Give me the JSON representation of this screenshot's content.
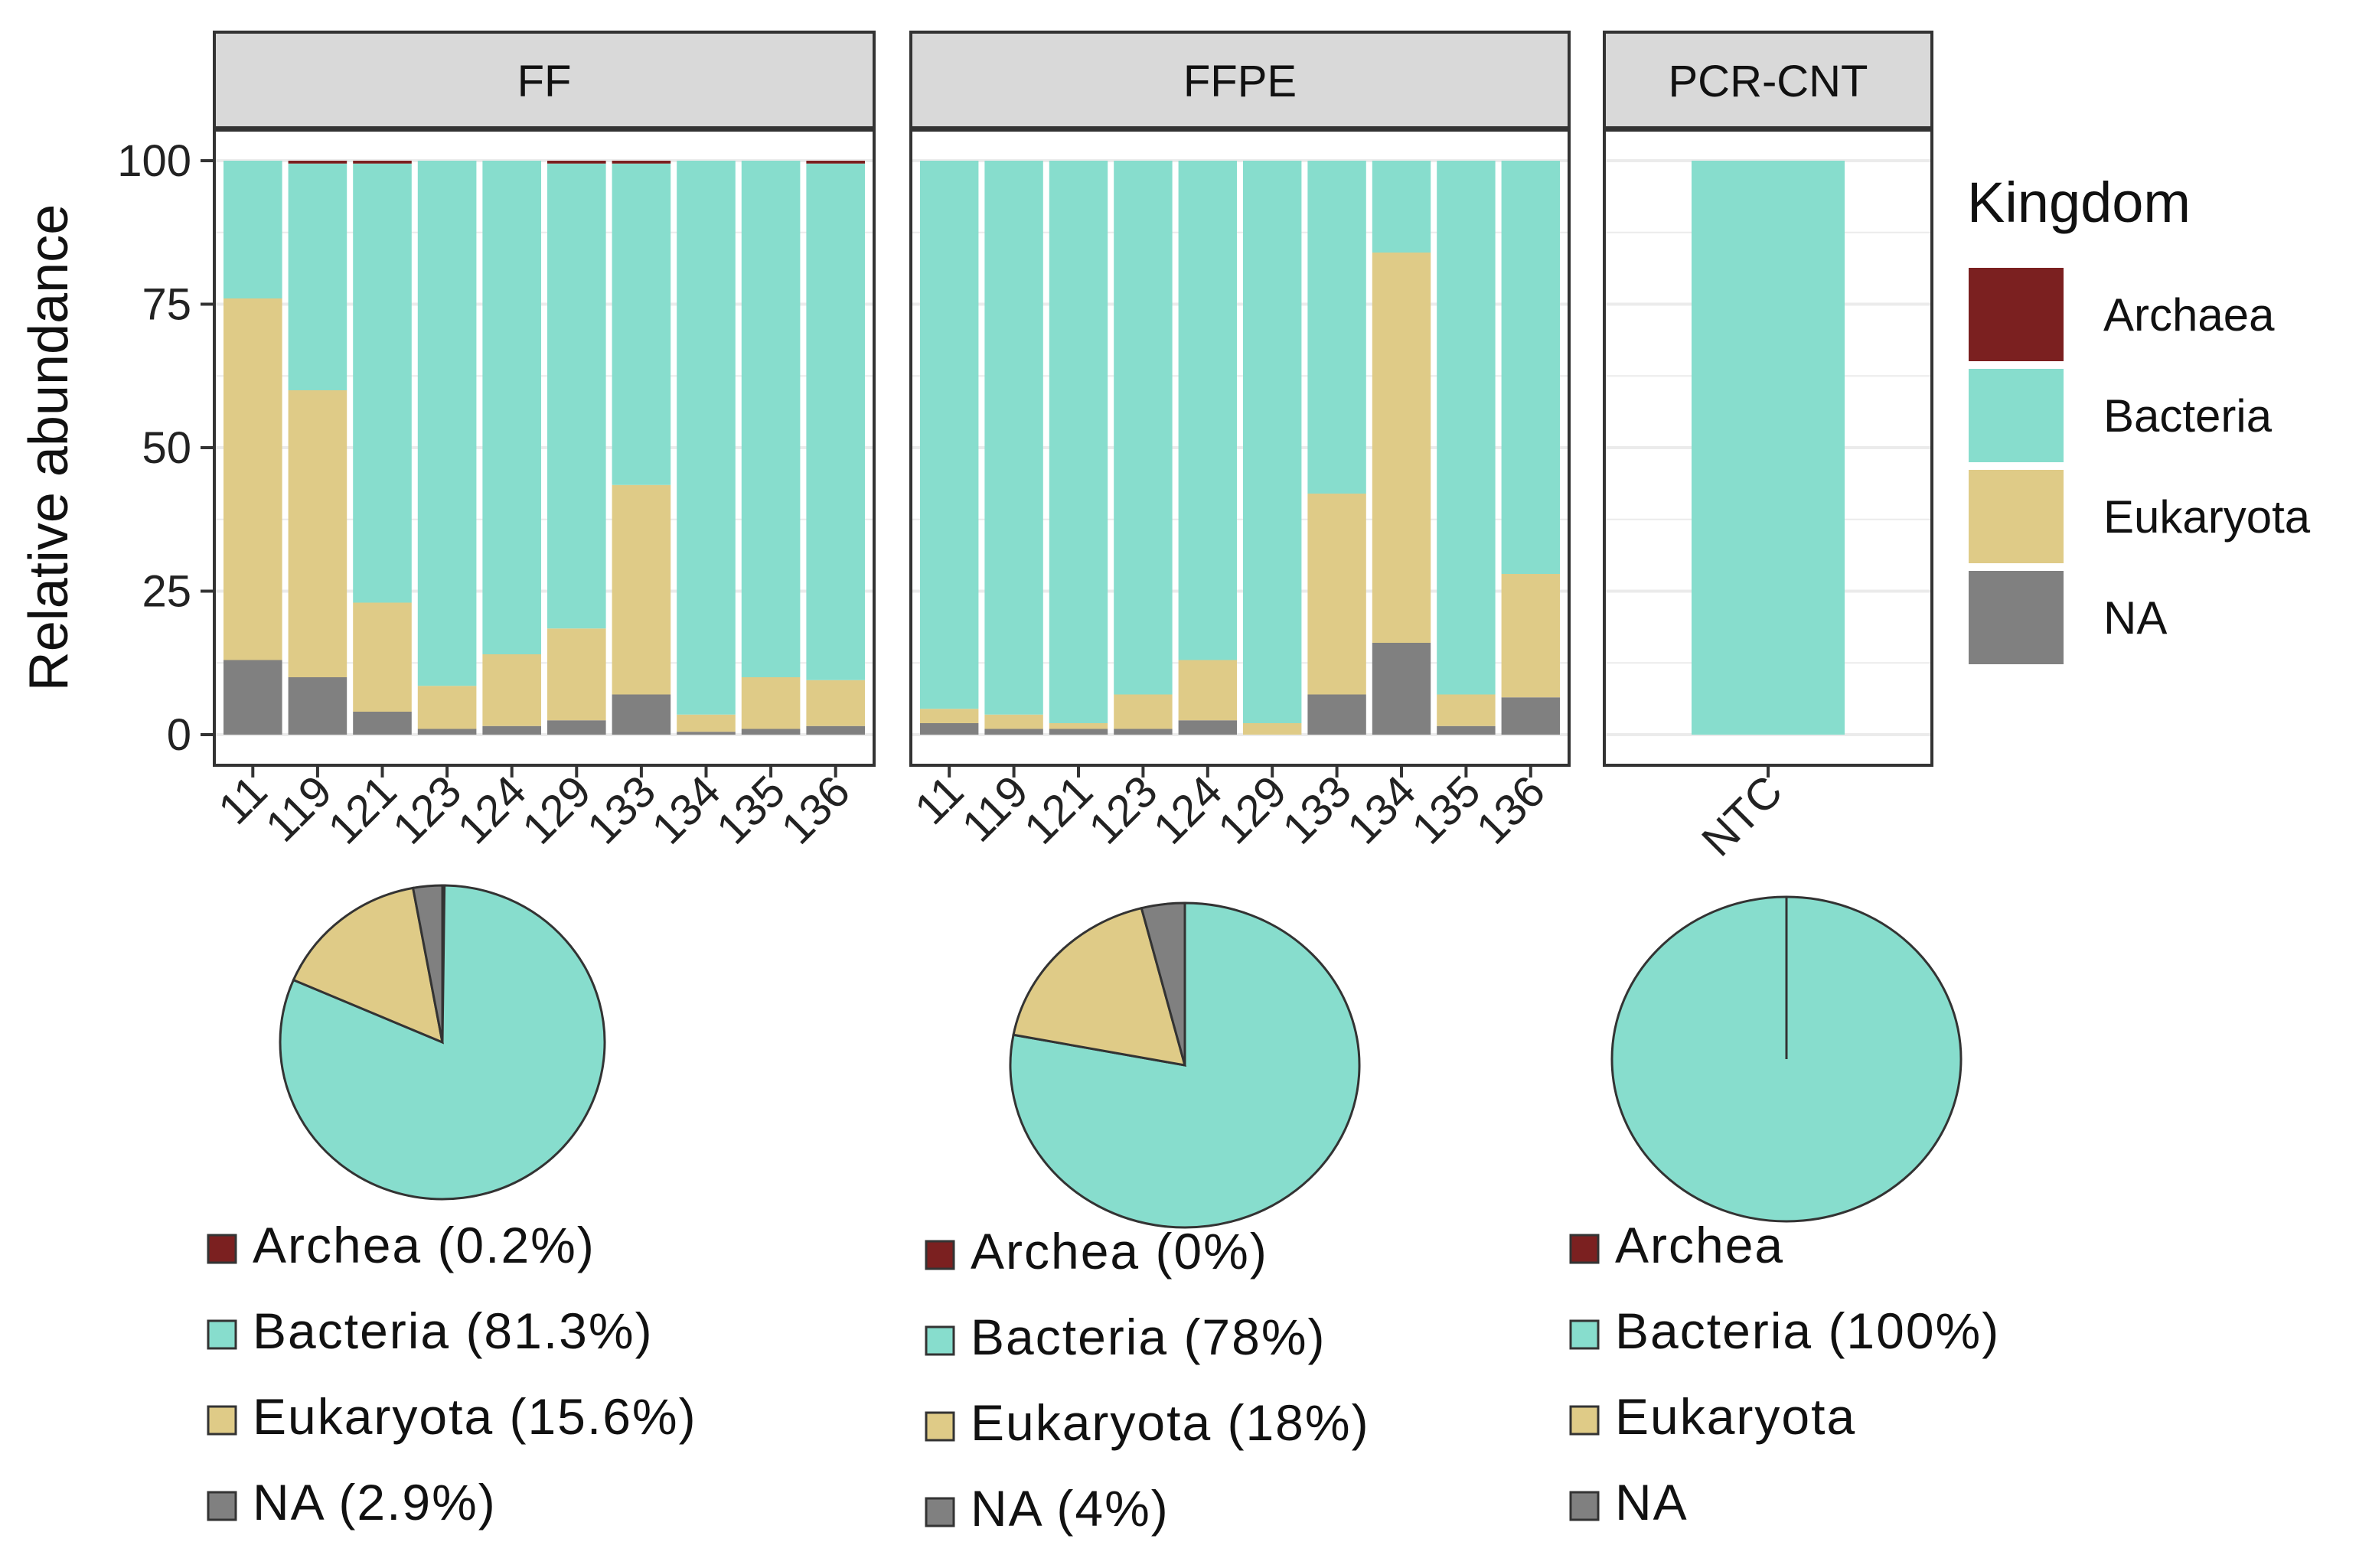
{
  "colors": {
    "Archaea": "#7b2020",
    "Bacteria": "#87ddcd",
    "Eukaryota": "#dfcb87",
    "NA": "#808080",
    "strip_bg": "#d9d9d9",
    "grid": "#ebebeb"
  },
  "chart_data": [
    {
      "type": "bar",
      "stacked": true,
      "ylabel": "Relative abundance",
      "ylim": [
        0,
        100
      ],
      "yticks": [
        "0",
        "25",
        "50",
        "75",
        "100"
      ],
      "stack_order_bottom_to_top": [
        "NA",
        "Eukaryota",
        "Bacteria",
        "Archaea"
      ],
      "legend": {
        "title": "Kingdom",
        "entries": [
          "Archaea",
          "Bacteria",
          "Eukaryota",
          "NA"
        ],
        "position": "right"
      },
      "facets": [
        {
          "strip": "FF",
          "categories": [
            "11",
            "119",
            "121",
            "123",
            "124",
            "129",
            "133",
            "134",
            "135",
            "136"
          ],
          "series": [
            {
              "name": "NA",
              "values": [
                13,
                10,
                4,
                1,
                1.5,
                2.5,
                7,
                0.5,
                1,
                1.5
              ]
            },
            {
              "name": "Eukaryota",
              "values": [
                63,
                50,
                19,
                7.5,
                12.5,
                16,
                36.5,
                3,
                9,
                8
              ]
            },
            {
              "name": "Bacteria",
              "values": [
                24,
                39.5,
                76.5,
                91.5,
                86,
                81,
                56,
                96.5,
                90,
                90
              ]
            },
            {
              "name": "Archaea",
              "values": [
                0,
                0.5,
                0.5,
                0,
                0,
                0.5,
                0.5,
                0,
                0,
                0.5
              ]
            }
          ]
        },
        {
          "strip": "FFPE",
          "categories": [
            "11",
            "119",
            "121",
            "123",
            "124",
            "129",
            "133",
            "134",
            "135",
            "136"
          ],
          "series": [
            {
              "name": "NA",
              "values": [
                2,
                1,
                1,
                1,
                2.5,
                0,
                7,
                16,
                1.5,
                6.5
              ]
            },
            {
              "name": "Eukaryota",
              "values": [
                2.5,
                2.5,
                1,
                6,
                10.5,
                2,
                35,
                68,
                5.5,
                21.5
              ]
            },
            {
              "name": "Bacteria",
              "values": [
                95.5,
                96.5,
                98,
                93,
                87,
                98,
                58,
                16,
                93,
                72
              ]
            },
            {
              "name": "Archaea",
              "values": [
                0,
                0,
                0,
                0,
                0,
                0,
                0,
                0,
                0,
                0
              ]
            }
          ]
        },
        {
          "strip": "PCR-CNT",
          "categories": [
            "NTC"
          ],
          "series": [
            {
              "name": "NA",
              "values": [
                0
              ]
            },
            {
              "name": "Eukaryota",
              "values": [
                0
              ]
            },
            {
              "name": "Bacteria",
              "values": [
                100
              ]
            },
            {
              "name": "Archaea",
              "values": [
                0
              ]
            }
          ]
        }
      ]
    },
    {
      "type": "pie",
      "pies": [
        {
          "group": "FF",
          "slices": [
            {
              "name": "Archaea",
              "value": 0.2
            },
            {
              "name": "Bacteria",
              "value": 81.3
            },
            {
              "name": "Eukaryota",
              "value": 15.6
            },
            {
              "name": "NA",
              "value": 2.9
            }
          ],
          "legend": [
            "Archea (0.2%)",
            "Bacteria (81.3%)",
            "Eukaryota (15.6%)",
            "NA (2.9%)"
          ]
        },
        {
          "group": "FFPE",
          "slices": [
            {
              "name": "Archaea",
              "value": 0
            },
            {
              "name": "Bacteria",
              "value": 78
            },
            {
              "name": "Eukaryota",
              "value": 18
            },
            {
              "name": "NA",
              "value": 4
            }
          ],
          "legend": [
            "Archea (0%)",
            "Bacteria (78%)",
            "Eukaryota (18%)",
            "NA (4%)"
          ]
        },
        {
          "group": "PCR-CNT",
          "slices": [
            {
              "name": "Archaea",
              "value": 0
            },
            {
              "name": "Bacteria",
              "value": 100
            },
            {
              "name": "Eukaryota",
              "value": 0
            },
            {
              "name": "NA",
              "value": 0
            }
          ],
          "legend": [
            "Archea",
            "Bacteria (100%)",
            "Eukaryota",
            "NA"
          ]
        }
      ]
    }
  ]
}
